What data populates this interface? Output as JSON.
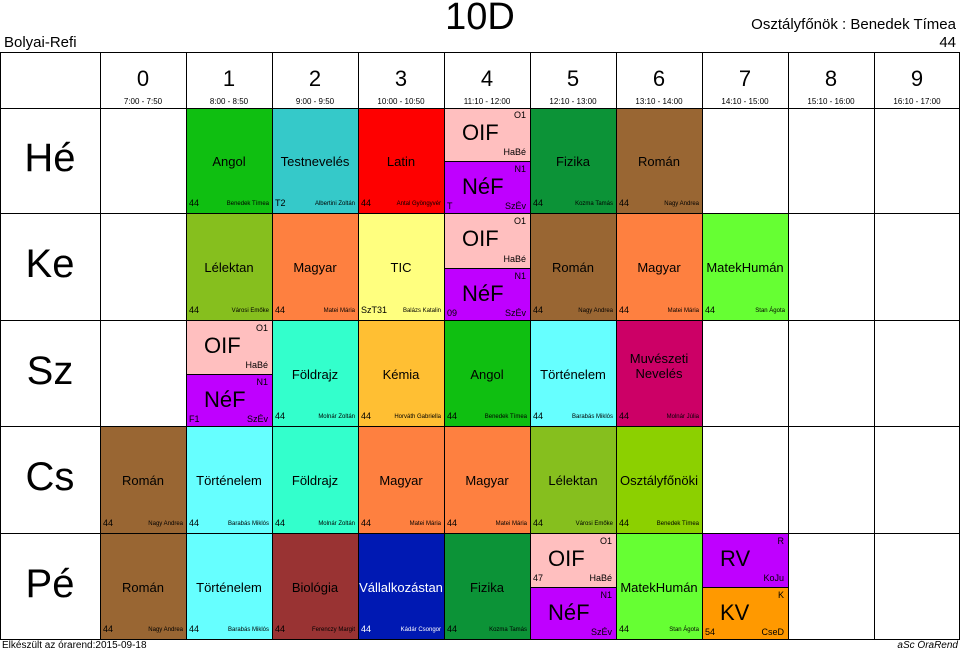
{
  "header": {
    "school": "Bolyai-Refi",
    "class_name": "10D",
    "class_teacher": "Osztályfőnök : Benedek Tímea",
    "room": "44"
  },
  "periods": [
    {
      "num": "0",
      "time": "7:00 - 7:50"
    },
    {
      "num": "1",
      "time": "8:00 - 8:50"
    },
    {
      "num": "2",
      "time": "9:00 - 9:50"
    },
    {
      "num": "3",
      "time": "10:00 - 10:50"
    },
    {
      "num": "4",
      "time": "11:10 - 12:00"
    },
    {
      "num": "5",
      "time": "12:10 - 13:00"
    },
    {
      "num": "6",
      "time": "13:10 - 14:00"
    },
    {
      "num": "7",
      "time": "14:10 - 15:00"
    },
    {
      "num": "8",
      "time": "15:10 - 16:00"
    },
    {
      "num": "9",
      "time": "16:10 - 17:00"
    }
  ],
  "days": [
    "Hé",
    "Ke",
    "Sz",
    "Cs",
    "Pé"
  ],
  "lessons": [
    {
      "day": 0,
      "period": 1,
      "subject": "Angol",
      "room": "44",
      "teacher": "Benedek Tímea",
      "color": "#0fbf11"
    },
    {
      "day": 0,
      "period": 2,
      "subject": "Testnevelés",
      "room": "T2",
      "teacher": "Albertini Zoltán",
      "color": "#35c9c9"
    },
    {
      "day": 0,
      "period": 3,
      "subject": "Latin",
      "room": "44",
      "teacher": "Antal Gyöngyvér",
      "color": "#fe0000"
    },
    {
      "day": 0,
      "period": 5,
      "subject": "Fizika",
      "room": "44",
      "teacher": "Kozma Tamás",
      "color": "#0c9337"
    },
    {
      "day": 0,
      "period": 6,
      "subject": "Román",
      "room": "44",
      "teacher": "Nagy Andrea",
      "color": "#996633"
    },
    {
      "day": 1,
      "period": 1,
      "subject": "Lélektan",
      "room": "44",
      "teacher": "Városi Emőke",
      "color": "#86bf1e"
    },
    {
      "day": 1,
      "period": 2,
      "subject": "Magyar",
      "room": "44",
      "teacher": "Matei Mária",
      "color": "#fe8040"
    },
    {
      "day": 1,
      "period": 3,
      "subject": "TIC",
      "room": "SzT31",
      "teacher": "Balázs Katalin",
      "color": "#ffff7f"
    },
    {
      "day": 1,
      "period": 5,
      "subject": "Román",
      "room": "44",
      "teacher": "Nagy Andrea",
      "color": "#996633"
    },
    {
      "day": 1,
      "period": 6,
      "subject": "Magyar",
      "room": "44",
      "teacher": "Matei Mária",
      "color": "#fe8040"
    },
    {
      "day": 1,
      "period": 7,
      "subject": "MatekHumán",
      "room": "44",
      "teacher": "Stan Ágota",
      "color": "#66ff33"
    },
    {
      "day": 2,
      "period": 2,
      "subject": "Földrajz",
      "room": "44",
      "teacher": "Molnár Zoltán",
      "color": "#33ffcc"
    },
    {
      "day": 2,
      "period": 3,
      "subject": "Kémia",
      "room": "44",
      "teacher": "Horváth Gabriella",
      "color": "#ffbf33"
    },
    {
      "day": 2,
      "period": 4,
      "subject": "Angol",
      "room": "44",
      "teacher": "Benedek Tímea",
      "color": "#0fbf11"
    },
    {
      "day": 2,
      "period": 5,
      "subject": "Történelem",
      "room": "44",
      "teacher": "Barabás Miklós",
      "color": "#66ffff"
    },
    {
      "day": 2,
      "period": 6,
      "subject": "Muvészeti Nevelés",
      "room": "44",
      "teacher": "Molnár Júlia",
      "color": "#cc0066"
    },
    {
      "day": 3,
      "period": 0,
      "subject": "Román",
      "room": "44",
      "teacher": "Nagy Andrea",
      "color": "#996633"
    },
    {
      "day": 3,
      "period": 1,
      "subject": "Történelem",
      "room": "44",
      "teacher": "Barabás Miklós",
      "color": "#66ffff"
    },
    {
      "day": 3,
      "period": 2,
      "subject": "Földrajz",
      "room": "44",
      "teacher": "Molnár Zoltán",
      "color": "#33ffcc"
    },
    {
      "day": 3,
      "period": 3,
      "subject": "Magyar",
      "room": "44",
      "teacher": "Matei Mária",
      "color": "#fe8040"
    },
    {
      "day": 3,
      "period": 4,
      "subject": "Magyar",
      "room": "44",
      "teacher": "Matei Mária",
      "color": "#fe8040"
    },
    {
      "day": 3,
      "period": 5,
      "subject": "Lélektan",
      "room": "44",
      "teacher": "Városi Emőke",
      "color": "#86bf1e"
    },
    {
      "day": 3,
      "period": 6,
      "subject": "Osztályfőnöki",
      "room": "44",
      "teacher": "Benedek Tímea",
      "color": "#8cd000"
    },
    {
      "day": 4,
      "period": 0,
      "subject": "Román",
      "room": "44",
      "teacher": "Nagy Andrea",
      "color": "#996633"
    },
    {
      "day": 4,
      "period": 1,
      "subject": "Történelem",
      "room": "44",
      "teacher": "Barabás Miklós",
      "color": "#66ffff"
    },
    {
      "day": 4,
      "period": 2,
      "subject": "Biológia",
      "room": "44",
      "teacher": "Ferenczy Margit",
      "color": "#993333"
    },
    {
      "day": 4,
      "period": 3,
      "subject": "Vállalkozástan",
      "room": "44",
      "teacher": "Kádár Csongor",
      "color": "#0019b3"
    },
    {
      "day": 4,
      "period": 4,
      "subject": "Fizika",
      "room": "44",
      "teacher": "Kozma Tamás",
      "color": "#0c9337"
    },
    {
      "day": 4,
      "period": 6,
      "subject": "MatekHumán",
      "room": "44",
      "teacher": "Stan Ágota",
      "color": "#66ff33"
    }
  ],
  "split_lessons": [
    {
      "day": 0,
      "period": 4,
      "top": {
        "subject": "OIF",
        "group": "O1",
        "teacher": "HaBé",
        "color": "#ffbfbf"
      },
      "bottom": {
        "subject": "NéF",
        "group": "N1",
        "room": "T",
        "teacher": "SzÉv",
        "color": "#bf00ff"
      }
    },
    {
      "day": 1,
      "period": 4,
      "top": {
        "subject": "OIF",
        "group": "O1",
        "teacher": "HaBé",
        "color": "#ffbfbf"
      },
      "bottom": {
        "subject": "NéF",
        "group": "N1",
        "room": "09",
        "teacher": "SzÉv",
        "color": "#bf00ff"
      }
    },
    {
      "day": 2,
      "period": 1,
      "top": {
        "subject": "OIF",
        "group": "O1",
        "teacher": "HaBé",
        "color": "#ffbfbf"
      },
      "bottom": {
        "subject": "NéF",
        "group": "N1",
        "room": "F1",
        "teacher": "SzÉv",
        "color": "#bf00ff"
      }
    },
    {
      "day": 4,
      "period": 5,
      "top": {
        "subject": "OIF",
        "group": "O1",
        "room": "47",
        "teacher": "HaBé",
        "color": "#ffbfbf"
      },
      "bottom": {
        "subject": "NéF",
        "group": "N1",
        "teacher": "SzÉv",
        "color": "#bf00ff"
      }
    },
    {
      "day": 4,
      "period": 7,
      "top": {
        "subject": "RV",
        "group": "R",
        "teacher": "KoJu",
        "color": "#bf00ff"
      },
      "bottom": {
        "subject": "KV",
        "group": "K",
        "room": "54",
        "teacher": "CseD",
        "color": "#ff9900"
      }
    }
  ],
  "footer": {
    "generated": "Elkészült az órarend:2015-09-18",
    "software": "aSc ÓraRend"
  }
}
